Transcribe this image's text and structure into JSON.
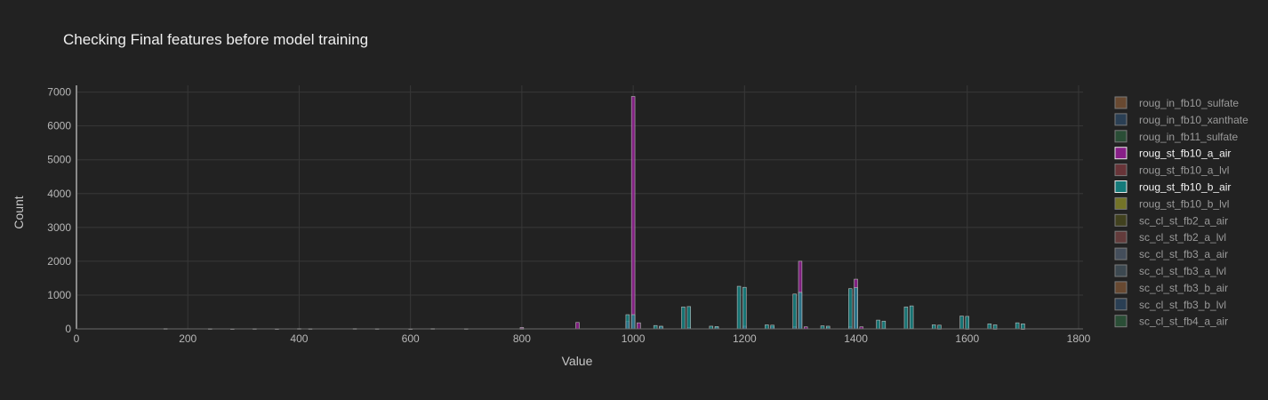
{
  "chart_data": {
    "type": "bar",
    "subtype": "overlaid-histogram",
    "title": "Checking Final features before model training",
    "xlabel": "Value",
    "ylabel": "Count",
    "xlim": [
      0,
      1800
    ],
    "ylim": [
      0,
      7200
    ],
    "xticks": [
      0,
      200,
      400,
      600,
      800,
      1000,
      1200,
      1400,
      1600,
      1800
    ],
    "yticks": [
      0,
      1000,
      2000,
      3000,
      4000,
      5000,
      6000,
      7000
    ],
    "grid": true,
    "legend_position": "right",
    "bin_width": 10,
    "series": [
      {
        "name": "roug_in_fb10_sulfate",
        "color": "#7a5436",
        "visible": false,
        "x": [],
        "values": []
      },
      {
        "name": "roug_in_fb10_xanthate",
        "color": "#2d4762",
        "visible": false,
        "x": [],
        "values": []
      },
      {
        "name": "roug_in_fb11_sulfate",
        "color": "#2d5a3c",
        "visible": false,
        "x": [],
        "values": []
      },
      {
        "name": "roug_st_fb10_a_air",
        "color": "#9a1e9a",
        "visible": true,
        "x": [
          160,
          240,
          280,
          320,
          360,
          400,
          420,
          500,
          540,
          600,
          640,
          700,
          800,
          900,
          990,
          1000,
          1010,
          1050,
          1100,
          1150,
          1200,
          1250,
          1290,
          1300,
          1310,
          1350,
          1390,
          1400,
          1410,
          1450,
          1500,
          1550,
          1600,
          1650,
          1700
        ],
        "values": [
          10,
          8,
          6,
          8,
          6,
          10,
          8,
          10,
          8,
          6,
          10,
          8,
          40,
          190,
          220,
          6870,
          180,
          60,
          40,
          40,
          80,
          60,
          60,
          2000,
          60,
          40,
          60,
          1470,
          60,
          20,
          20,
          10,
          10,
          8,
          6
        ]
      },
      {
        "name": "roug_st_fb10_a_lvl",
        "color": "#7a3a3e",
        "visible": false,
        "x": [],
        "values": []
      },
      {
        "name": "roug_st_fb10_b_air",
        "color": "#138a8a",
        "visible": true,
        "x": [
          800,
          990,
          1000,
          1040,
          1050,
          1090,
          1100,
          1140,
          1150,
          1190,
          1200,
          1240,
          1250,
          1290,
          1300,
          1340,
          1350,
          1390,
          1400,
          1440,
          1450,
          1490,
          1500,
          1540,
          1550,
          1590,
          1600,
          1640,
          1650,
          1690,
          1700
        ],
        "values": [
          10,
          420,
          420,
          100,
          80,
          650,
          660,
          80,
          70,
          1260,
          1230,
          120,
          110,
          1030,
          1080,
          90,
          80,
          1190,
          1220,
          260,
          230,
          650,
          680,
          120,
          110,
          380,
          370,
          150,
          120,
          180,
          150
        ]
      },
      {
        "name": "roug_st_fb10_b_lvl",
        "color": "#8a8a2a",
        "visible": false,
        "x": [],
        "values": []
      },
      {
        "name": "sc_cl_st_fb2_a_air",
        "color": "#4a4a1e",
        "visible": false,
        "x": [],
        "values": []
      },
      {
        "name": "sc_cl_st_fb2_a_lvl",
        "color": "#744242",
        "visible": false,
        "x": [],
        "values": []
      },
      {
        "name": "sc_cl_st_fb3_a_air",
        "color": "#4d5a6a",
        "visible": false,
        "x": [],
        "values": []
      },
      {
        "name": "sc_cl_st_fb3_a_lvl",
        "color": "#44525c",
        "visible": false,
        "x": [],
        "values": []
      },
      {
        "name": "sc_cl_st_fb3_b_air",
        "color": "#7a5436",
        "visible": false,
        "x": [],
        "values": []
      },
      {
        "name": "sc_cl_st_fb3_b_lvl",
        "color": "#2d4762",
        "visible": false,
        "x": [],
        "values": []
      },
      {
        "name": "sc_cl_st_fb4_a_air",
        "color": "#2d5a3c",
        "visible": false,
        "x": [],
        "values": []
      }
    ]
  }
}
